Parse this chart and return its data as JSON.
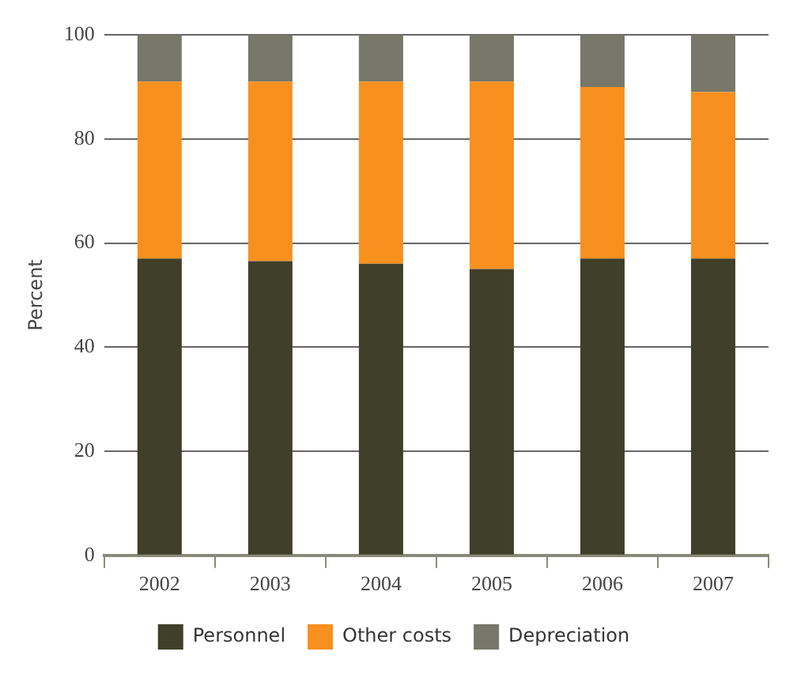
{
  "chart_data": {
    "type": "bar",
    "stacked": true,
    "ylabel": "Percent",
    "categories": [
      "2002",
      "2003",
      "2004",
      "2005",
      "2006",
      "2007"
    ],
    "series": [
      {
        "name": "Personnel",
        "color": "#3f3f2a",
        "values": [
          57,
          56.5,
          56,
          55,
          57,
          57
        ]
      },
      {
        "name": "Other costs",
        "color": "#f7901e",
        "values": [
          34,
          34.5,
          35,
          36,
          33,
          32
        ]
      },
      {
        "name": "Depreciation",
        "color": "#77776a",
        "values": [
          9,
          9,
          9,
          9,
          10,
          11
        ]
      }
    ],
    "ylim": [
      0,
      100
    ],
    "yticks": [
      0,
      20,
      40,
      60,
      80,
      100
    ],
    "grid": "y",
    "legend": "bottom"
  }
}
